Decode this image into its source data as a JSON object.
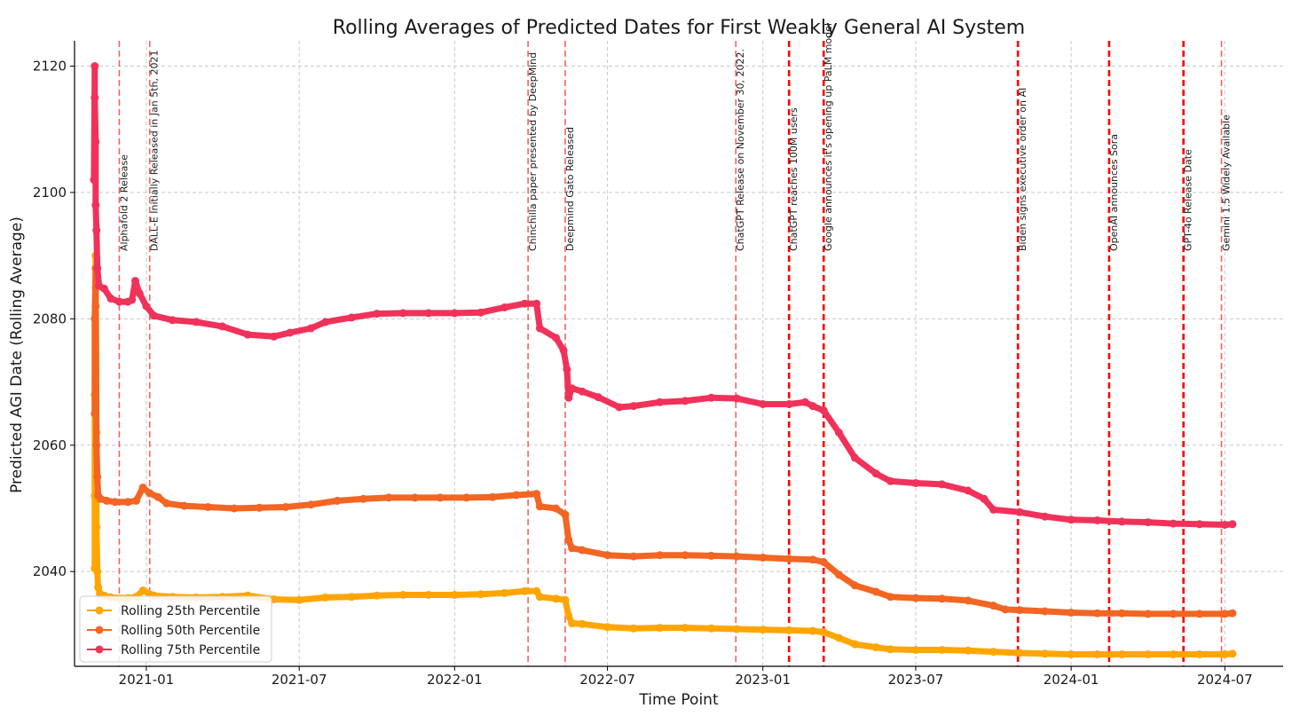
{
  "chart_data": {
    "type": "line",
    "title": "Rolling Averages of Predicted Dates for First Weakly General AI System",
    "xlabel": "Time Point",
    "ylabel": "Predicted AGI Date (Rolling Average)",
    "xlim": [
      "2020-10-08",
      "2024-09-08"
    ],
    "ylim": [
      2025,
      2124
    ],
    "grid": true,
    "legend_position": "lower-left",
    "x_ticks": [
      {
        "date": "2021-01-01",
        "label": "2021-01"
      },
      {
        "date": "2021-07-01",
        "label": "2021-07"
      },
      {
        "date": "2022-01-01",
        "label": "2022-01"
      },
      {
        "date": "2022-07-01",
        "label": "2022-07"
      },
      {
        "date": "2023-01-01",
        "label": "2023-01"
      },
      {
        "date": "2023-07-01",
        "label": "2023-07"
      },
      {
        "date": "2024-01-01",
        "label": "2024-01"
      },
      {
        "date": "2024-07-01",
        "label": "2024-07"
      }
    ],
    "y_ticks": [
      2040,
      2060,
      2080,
      2100,
      2120
    ],
    "events": [
      {
        "date": "2020-11-30",
        "label": "Alphafold 2 Release",
        "strong": false
      },
      {
        "date": "2021-01-05",
        "label": "DALL-E Initially Released in Jan 5th, 2021",
        "strong": false
      },
      {
        "date": "2022-03-29",
        "label": "Chinchilla paper presented by DeepMind",
        "strong": false
      },
      {
        "date": "2022-05-12",
        "label": "Deepmind Gato Released",
        "strong": false
      },
      {
        "date": "2022-11-30",
        "label": "ChatGPT Release on November 30, 2022.",
        "strong": false
      },
      {
        "date": "2023-02-01",
        "label": "ChatGPT reaches 100M users",
        "strong": true
      },
      {
        "date": "2023-03-14",
        "label": "Google announces it's opening up PaLM model",
        "strong": true
      },
      {
        "date": "2023-10-30",
        "label": "Biden signs executive order on AI",
        "strong": true
      },
      {
        "date": "2024-02-15",
        "label": "OpenAI announces Sora",
        "strong": true
      },
      {
        "date": "2024-05-13",
        "label": "GPT-4o Release Date",
        "strong": true
      },
      {
        "date": "2024-06-27",
        "label": "Gemini 1.5 Widely Available",
        "strong": false
      }
    ],
    "series": [
      {
        "name": "Rolling 25th Percentile",
        "color": "#FFA500",
        "points": [
          [
            "2020-11-01",
            2040.5
          ],
          [
            "2020-11-01",
            2052.0
          ],
          [
            "2020-11-01",
            2068.0
          ],
          [
            "2020-11-02",
            2085.0
          ],
          [
            "2020-11-02",
            2090.0
          ],
          [
            "2020-11-03",
            2062.0
          ],
          [
            "2020-11-03",
            2047.0
          ],
          [
            "2020-11-04",
            2040.0
          ],
          [
            "2020-11-05",
            2037.5
          ],
          [
            "2020-11-07",
            2036.5
          ],
          [
            "2020-11-12",
            2036.2
          ],
          [
            "2020-11-20",
            2035.9
          ],
          [
            "2020-12-10",
            2035.8
          ],
          [
            "2020-12-20",
            2036.0
          ],
          [
            "2020-12-28",
            2037.0
          ],
          [
            "2021-01-10",
            2036.2
          ],
          [
            "2021-02-01",
            2036.0
          ],
          [
            "2021-03-01",
            2035.9
          ],
          [
            "2021-04-01",
            2036.0
          ],
          [
            "2021-05-01",
            2036.2
          ],
          [
            "2021-06-01",
            2035.6
          ],
          [
            "2021-07-01",
            2035.5
          ],
          [
            "2021-08-01",
            2035.9
          ],
          [
            "2021-09-01",
            2036.0
          ],
          [
            "2021-10-01",
            2036.2
          ],
          [
            "2021-11-01",
            2036.3
          ],
          [
            "2021-12-01",
            2036.3
          ],
          [
            "2022-01-01",
            2036.3
          ],
          [
            "2022-02-01",
            2036.4
          ],
          [
            "2022-03-01",
            2036.6
          ],
          [
            "2022-03-25",
            2036.9
          ],
          [
            "2022-04-08",
            2036.9
          ],
          [
            "2022-04-12",
            2036.0
          ],
          [
            "2022-05-01",
            2035.7
          ],
          [
            "2022-05-12",
            2035.5
          ],
          [
            "2022-05-16",
            2033.0
          ],
          [
            "2022-05-20",
            2031.8
          ],
          [
            "2022-06-01",
            2031.7
          ],
          [
            "2022-07-01",
            2031.2
          ],
          [
            "2022-08-01",
            2031.0
          ],
          [
            "2022-09-01",
            2031.1
          ],
          [
            "2022-10-01",
            2031.1
          ],
          [
            "2022-11-01",
            2031.0
          ],
          [
            "2022-12-01",
            2030.9
          ],
          [
            "2023-01-01",
            2030.8
          ],
          [
            "2023-02-01",
            2030.7
          ],
          [
            "2023-03-01",
            2030.6
          ],
          [
            "2023-03-14",
            2030.4
          ],
          [
            "2023-04-01",
            2029.5
          ],
          [
            "2023-04-20",
            2028.5
          ],
          [
            "2023-05-15",
            2028.0
          ],
          [
            "2023-06-01",
            2027.7
          ],
          [
            "2023-07-01",
            2027.6
          ],
          [
            "2023-08-01",
            2027.6
          ],
          [
            "2023-09-01",
            2027.5
          ],
          [
            "2023-10-01",
            2027.3
          ],
          [
            "2023-11-01",
            2027.1
          ],
          [
            "2023-12-01",
            2027.0
          ],
          [
            "2024-01-01",
            2026.9
          ],
          [
            "2024-02-01",
            2026.9
          ],
          [
            "2024-03-01",
            2026.9
          ],
          [
            "2024-04-01",
            2026.9
          ],
          [
            "2024-05-01",
            2026.9
          ],
          [
            "2024-06-01",
            2026.9
          ],
          [
            "2024-07-01",
            2026.9
          ],
          [
            "2024-07-10",
            2027.0
          ]
        ]
      },
      {
        "name": "Rolling 50th Percentile",
        "color": "#F26522",
        "points": [
          [
            "2020-11-01",
            2065.0
          ],
          [
            "2020-11-01",
            2080.0
          ],
          [
            "2020-11-02",
            2088.0
          ],
          [
            "2020-11-02",
            2082.0
          ],
          [
            "2020-11-03",
            2060.0
          ],
          [
            "2020-11-04",
            2055.0
          ],
          [
            "2020-11-05",
            2052.0
          ],
          [
            "2020-11-08",
            2051.5
          ],
          [
            "2020-11-15",
            2051.2
          ],
          [
            "2020-11-25",
            2051.0
          ],
          [
            "2020-12-10",
            2051.0
          ],
          [
            "2020-12-20",
            2051.2
          ],
          [
            "2020-12-28",
            2053.3
          ],
          [
            "2021-01-05",
            2052.4
          ],
          [
            "2021-01-15",
            2051.8
          ],
          [
            "2021-01-25",
            2050.8
          ],
          [
            "2021-02-15",
            2050.4
          ],
          [
            "2021-03-15",
            2050.2
          ],
          [
            "2021-04-15",
            2050.0
          ],
          [
            "2021-05-15",
            2050.1
          ],
          [
            "2021-06-15",
            2050.2
          ],
          [
            "2021-07-15",
            2050.6
          ],
          [
            "2021-08-15",
            2051.2
          ],
          [
            "2021-09-15",
            2051.5
          ],
          [
            "2021-10-15",
            2051.7
          ],
          [
            "2021-11-15",
            2051.7
          ],
          [
            "2021-12-15",
            2051.7
          ],
          [
            "2022-01-15",
            2051.7
          ],
          [
            "2022-02-15",
            2051.8
          ],
          [
            "2022-03-15",
            2052.1
          ],
          [
            "2022-04-08",
            2052.3
          ],
          [
            "2022-04-12",
            2050.3
          ],
          [
            "2022-05-01",
            2050.0
          ],
          [
            "2022-05-12",
            2049.0
          ],
          [
            "2022-05-16",
            2045.0
          ],
          [
            "2022-05-20",
            2043.7
          ],
          [
            "2022-06-01",
            2043.4
          ],
          [
            "2022-07-01",
            2042.6
          ],
          [
            "2022-08-01",
            2042.4
          ],
          [
            "2022-09-01",
            2042.6
          ],
          [
            "2022-10-01",
            2042.6
          ],
          [
            "2022-11-01",
            2042.5
          ],
          [
            "2022-12-01",
            2042.4
          ],
          [
            "2023-01-01",
            2042.2
          ],
          [
            "2023-02-01",
            2042.0
          ],
          [
            "2023-03-01",
            2041.9
          ],
          [
            "2023-03-14",
            2041.5
          ],
          [
            "2023-04-01",
            2039.5
          ],
          [
            "2023-04-20",
            2037.8
          ],
          [
            "2023-05-15",
            2036.8
          ],
          [
            "2023-06-01",
            2036.0
          ],
          [
            "2023-07-01",
            2035.8
          ],
          [
            "2023-08-01",
            2035.7
          ],
          [
            "2023-09-01",
            2035.4
          ],
          [
            "2023-10-01",
            2034.6
          ],
          [
            "2023-10-15",
            2034.0
          ],
          [
            "2023-11-01",
            2033.9
          ],
          [
            "2023-12-01",
            2033.7
          ],
          [
            "2024-01-01",
            2033.5
          ],
          [
            "2024-02-01",
            2033.4
          ],
          [
            "2024-03-01",
            2033.4
          ],
          [
            "2024-04-01",
            2033.3
          ],
          [
            "2024-05-01",
            2033.3
          ],
          [
            "2024-06-01",
            2033.3
          ],
          [
            "2024-07-01",
            2033.3
          ],
          [
            "2024-07-10",
            2033.4
          ]
        ]
      },
      {
        "name": "Rolling 75th Percentile",
        "color": "#F0325A",
        "points": [
          [
            "2020-10-31",
            2102.0
          ],
          [
            "2020-11-01",
            2120.0
          ],
          [
            "2020-11-01",
            2115.0
          ],
          [
            "2020-11-02",
            2108.0
          ],
          [
            "2020-11-02",
            2098.0
          ],
          [
            "2020-11-03",
            2094.0
          ],
          [
            "2020-11-04",
            2088.0
          ],
          [
            "2020-11-06",
            2085.2
          ],
          [
            "2020-11-12",
            2084.8
          ],
          [
            "2020-11-20",
            2083.2
          ],
          [
            "2020-11-30",
            2082.7
          ],
          [
            "2020-12-10",
            2082.7
          ],
          [
            "2020-12-15",
            2083.0
          ],
          [
            "2020-12-19",
            2086.0
          ],
          [
            "2020-12-24",
            2084.0
          ],
          [
            "2021-01-01",
            2082.0
          ],
          [
            "2021-01-10",
            2080.5
          ],
          [
            "2021-02-01",
            2079.8
          ],
          [
            "2021-03-01",
            2079.5
          ],
          [
            "2021-04-01",
            2078.8
          ],
          [
            "2021-05-01",
            2077.5
          ],
          [
            "2021-06-01",
            2077.2
          ],
          [
            "2021-06-20",
            2077.8
          ],
          [
            "2021-07-15",
            2078.5
          ],
          [
            "2021-08-01",
            2079.5
          ],
          [
            "2021-09-01",
            2080.2
          ],
          [
            "2021-10-01",
            2080.8
          ],
          [
            "2021-11-01",
            2080.9
          ],
          [
            "2021-12-01",
            2080.9
          ],
          [
            "2022-01-01",
            2080.9
          ],
          [
            "2022-02-01",
            2081.0
          ],
          [
            "2022-03-01",
            2081.8
          ],
          [
            "2022-03-25",
            2082.4
          ],
          [
            "2022-04-08",
            2082.4
          ],
          [
            "2022-04-12",
            2078.5
          ],
          [
            "2022-05-01",
            2077.0
          ],
          [
            "2022-05-10",
            2075.0
          ],
          [
            "2022-05-14",
            2072.0
          ],
          [
            "2022-05-16",
            2067.5
          ],
          [
            "2022-05-20",
            2069.0
          ],
          [
            "2022-06-01",
            2068.5
          ],
          [
            "2022-06-20",
            2067.6
          ],
          [
            "2022-07-15",
            2066.0
          ],
          [
            "2022-08-01",
            2066.2
          ],
          [
            "2022-09-01",
            2066.8
          ],
          [
            "2022-10-01",
            2067.0
          ],
          [
            "2022-11-01",
            2067.5
          ],
          [
            "2022-12-01",
            2067.4
          ],
          [
            "2023-01-01",
            2066.5
          ],
          [
            "2023-02-01",
            2066.5
          ],
          [
            "2023-02-20",
            2066.8
          ],
          [
            "2023-03-01",
            2066.2
          ],
          [
            "2023-03-14",
            2065.5
          ],
          [
            "2023-04-01",
            2062.0
          ],
          [
            "2023-04-20",
            2058.0
          ],
          [
            "2023-05-15",
            2055.5
          ],
          [
            "2023-06-01",
            2054.3
          ],
          [
            "2023-07-01",
            2054.0
          ],
          [
            "2023-08-01",
            2053.8
          ],
          [
            "2023-09-01",
            2052.8
          ],
          [
            "2023-09-20",
            2051.5
          ],
          [
            "2023-10-01",
            2049.8
          ],
          [
            "2023-11-01",
            2049.4
          ],
          [
            "2023-12-01",
            2048.7
          ],
          [
            "2024-01-01",
            2048.2
          ],
          [
            "2024-02-01",
            2048.1
          ],
          [
            "2024-03-01",
            2047.9
          ],
          [
            "2024-04-01",
            2047.8
          ],
          [
            "2024-05-01",
            2047.6
          ],
          [
            "2024-06-01",
            2047.5
          ],
          [
            "2024-07-01",
            2047.4
          ],
          [
            "2024-07-10",
            2047.5
          ]
        ]
      }
    ]
  }
}
